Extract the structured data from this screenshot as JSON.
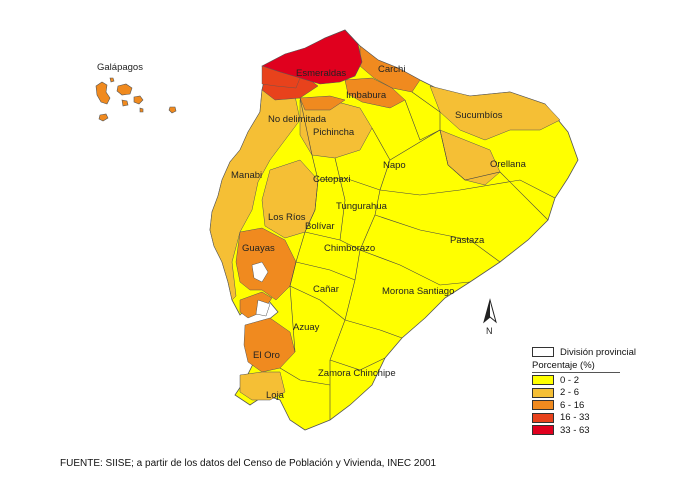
{
  "map": {
    "labels": {
      "galapagos": "Galápagos",
      "esmeraldas": "Esmeraldas",
      "carchi": "Carchi",
      "imbabura": "Imbabura",
      "no_delimitada": "No delimitada",
      "sucumbios": "Sucumbíos",
      "pichincha": "Pichincha",
      "manabi": "Manabi",
      "napo": "Napo",
      "orellana": "Orellana",
      "cotopaxi": "Cotopaxi",
      "tungurahua": "Tungurahua",
      "los_rios": "Los Ríos",
      "bolivar": "Bolívar",
      "pastaza": "Pastaza",
      "guayas": "Guayas",
      "chimborazo": "Chimborazo",
      "canar": "Cañar",
      "morona_santiago": "Morona Santiago",
      "azuay": "Azuay",
      "el_oro": "El Oro",
      "zamora_chinchipe": "Zamora Chinchipe",
      "loja": "Loja"
    },
    "north_arrow_label": "N",
    "province_percentage_class": {
      "esmeraldas": "33 - 63",
      "carchi": "6 - 16",
      "imbabura": "6 - 16",
      "sucumbios": "2 - 6",
      "orellana": "2 - 6",
      "galapagos": "6 - 16",
      "guayas": "6 - 16",
      "el_oro": "6 - 16",
      "pichincha": "2 - 6",
      "manabi": "2 - 6",
      "los_rios": "2 - 6",
      "others": "0 - 2"
    }
  },
  "legend": {
    "division_label": "División provincial",
    "title": "Porcentaje (%)",
    "items": [
      {
        "label": "0 - 2",
        "color": "#ffff00"
      },
      {
        "label": "2 - 6",
        "color": "#f5bf35"
      },
      {
        "label": "6 - 16",
        "color": "#f08a1f"
      },
      {
        "label": "16 - 33",
        "color": "#e8421c"
      },
      {
        "label": "33 - 63",
        "color": "#e0001e"
      }
    ]
  },
  "source": "FUENTE:  SIISE;  a partir de los datos del Censo  de Población y Vivienda, INEC 2001"
}
